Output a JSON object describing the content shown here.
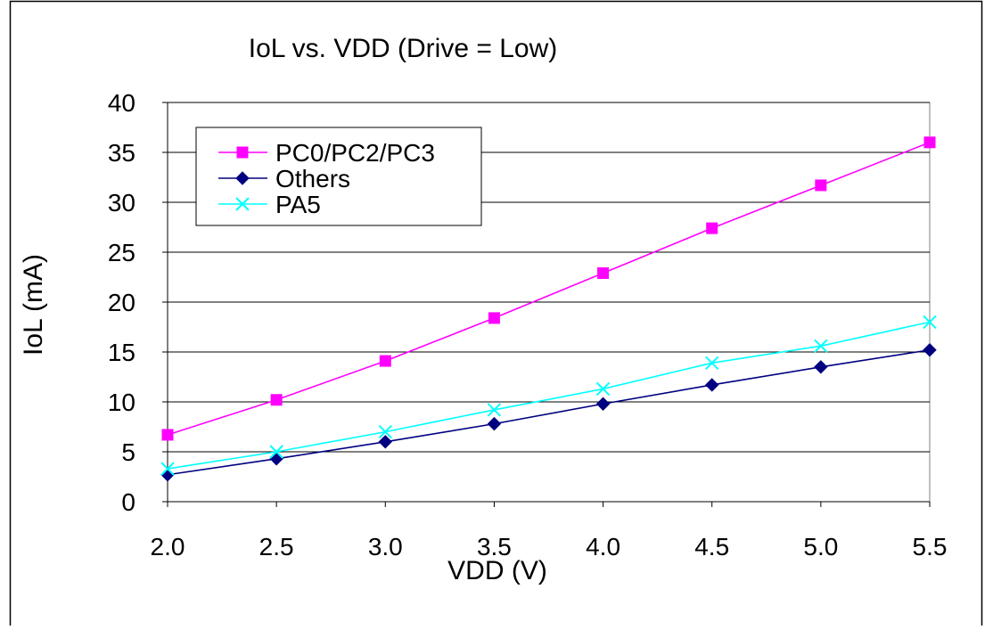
{
  "chart_data": {
    "type": "line",
    "title": "IoL vs. VDD (Drive = Low)",
    "xlabel": "VDD (V)",
    "ylabel": "IoL (mA)",
    "x": [
      "2.0",
      "2.5",
      "3.0",
      "3.5",
      "4.0",
      "4.5",
      "5.0",
      "5.5"
    ],
    "ylim": [
      0,
      40
    ],
    "yticks": [
      "0",
      "5",
      "10",
      "15",
      "20",
      "25",
      "30",
      "35",
      "40"
    ],
    "grid": "horizontal",
    "legend_position": "top-left",
    "series": [
      {
        "name": "PC0/PC2/PC3",
        "color": "#ff00ff",
        "marker": "square",
        "values": [
          6.7,
          10.2,
          14.1,
          18.4,
          22.9,
          27.4,
          31.7,
          36.0
        ]
      },
      {
        "name": "Others",
        "color": "#000080",
        "marker": "diamond",
        "values": [
          2.7,
          4.3,
          6.0,
          7.8,
          9.8,
          11.7,
          13.5,
          15.2
        ]
      },
      {
        "name": "PA5",
        "color": "#00ffff",
        "marker": "x",
        "values": [
          3.3,
          5.0,
          7.0,
          9.2,
          11.3,
          13.9,
          15.6,
          18.0
        ]
      }
    ]
  }
}
